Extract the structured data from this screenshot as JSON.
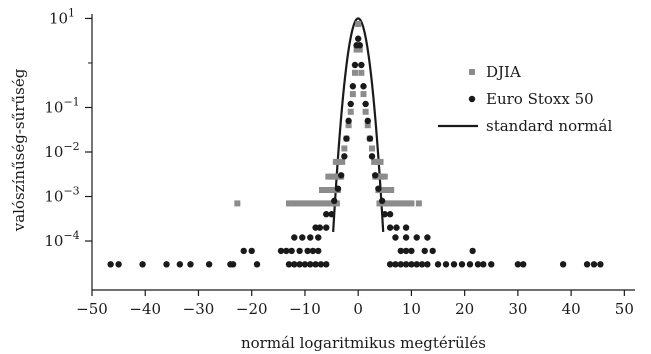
{
  "chart_data": {
    "type": "scatter",
    "xlabel": "normál logaritmikus megtérülés",
    "ylabel": "valószínűség-sűrűség",
    "xlim": [
      -50,
      52
    ],
    "ylim_log10": [
      -5.1,
      1.1
    ],
    "y_scale": "log",
    "x_ticks": [
      -50,
      -40,
      -30,
      -20,
      -10,
      0,
      10,
      20,
      30,
      40,
      50
    ],
    "y_ticks": [
      {
        "exp": 1,
        "base": "10",
        "sup": "1"
      },
      {
        "exp": -1,
        "base": "10",
        "sup": "−1"
      },
      {
        "exp": -2,
        "base": "10",
        "sup": "−2"
      },
      {
        "exp": -3,
        "base": "10",
        "sup": "−3"
      },
      {
        "exp": -4,
        "base": "10",
        "sup": "−4"
      }
    ],
    "minor_y_ticks": [
      0
    ],
    "legend_position": "right",
    "series": [
      {
        "name": "DJIA",
        "marker": "square",
        "color": "#8c8c8c",
        "points": [
          [
            -22.7,
            0.0007
          ],
          [
            -13.0,
            0.0007
          ],
          [
            -12.4,
            0.0007
          ],
          [
            -11.8,
            0.0007
          ],
          [
            -11.2,
            0.0007
          ],
          [
            -10.6,
            0.0007
          ],
          [
            -10.0,
            0.0007
          ],
          [
            -9.4,
            0.0007
          ],
          [
            -8.8,
            0.0007
          ],
          [
            -8.2,
            0.0007
          ],
          [
            -7.6,
            0.0007
          ],
          [
            -7.0,
            0.0007
          ],
          [
            -6.4,
            0.0007
          ],
          [
            -5.8,
            0.0007
          ],
          [
            -5.2,
            0.0007
          ],
          [
            -4.6,
            0.0007
          ],
          [
            -4.0,
            0.0007
          ],
          [
            4.0,
            0.0007
          ],
          [
            4.6,
            0.0007
          ],
          [
            5.2,
            0.0007
          ],
          [
            5.8,
            0.0007
          ],
          [
            6.4,
            0.0007
          ],
          [
            7.0,
            0.0007
          ],
          [
            7.6,
            0.0007
          ],
          [
            8.2,
            0.0007
          ],
          [
            8.8,
            0.0007
          ],
          [
            9.4,
            0.0007
          ],
          [
            10.0,
            0.0007
          ],
          [
            11.4,
            0.0007
          ],
          [
            -6.8,
            0.0014
          ],
          [
            -6.2,
            0.0014
          ],
          [
            -5.6,
            0.0014
          ],
          [
            -5.0,
            0.0014
          ],
          [
            -4.4,
            0.0014
          ],
          [
            -3.8,
            0.0014
          ],
          [
            3.8,
            0.0014
          ],
          [
            4.4,
            0.0014
          ],
          [
            5.0,
            0.0014
          ],
          [
            5.6,
            0.0014
          ],
          [
            6.2,
            0.0014
          ],
          [
            -5.6,
            0.0028
          ],
          [
            -5.0,
            0.0028
          ],
          [
            -4.4,
            0.0028
          ],
          [
            -3.8,
            0.0028
          ],
          [
            -3.2,
            0.0028
          ],
          [
            3.2,
            0.0028
          ],
          [
            3.8,
            0.0028
          ],
          [
            4.4,
            0.0028
          ],
          [
            5.0,
            0.0028
          ],
          [
            -4.2,
            0.006
          ],
          [
            -3.6,
            0.006
          ],
          [
            -3.0,
            0.006
          ],
          [
            3.0,
            0.006
          ],
          [
            3.6,
            0.006
          ],
          [
            4.2,
            0.006
          ],
          [
            -2.6,
            0.012
          ],
          [
            -2.2,
            0.02
          ],
          [
            -1.8,
            0.04
          ],
          [
            -1.4,
            0.08
          ],
          [
            -1.0,
            0.2
          ],
          [
            -0.6,
            0.6
          ],
          [
            -0.3,
            2.0
          ],
          [
            0.0,
            7.5
          ],
          [
            0.3,
            2.0
          ],
          [
            0.6,
            0.6
          ],
          [
            1.0,
            0.2
          ],
          [
            1.4,
            0.08
          ],
          [
            1.8,
            0.04
          ],
          [
            2.2,
            0.02
          ],
          [
            2.6,
            0.012
          ]
        ]
      },
      {
        "name": "Euro Stoxx 50",
        "marker": "circle",
        "color": "#1a1a1a",
        "points": [
          [
            -46.5,
            3e-05
          ],
          [
            -45.0,
            3e-05
          ],
          [
            -40.5,
            3e-05
          ],
          [
            -36.0,
            3e-05
          ],
          [
            -33.5,
            3e-05
          ],
          [
            -31.5,
            3e-05
          ],
          [
            -28.0,
            3e-05
          ],
          [
            -24.0,
            3e-05
          ],
          [
            -23.5,
            3e-05
          ],
          [
            -19.0,
            3e-05
          ],
          [
            -13.0,
            3e-05
          ],
          [
            -12.0,
            3e-05
          ],
          [
            -11.0,
            3e-05
          ],
          [
            -10.0,
            3e-05
          ],
          [
            -9.0,
            3e-05
          ],
          [
            -8.0,
            3e-05
          ],
          [
            -7.0,
            3e-05
          ],
          [
            -6.0,
            3e-05
          ],
          [
            6.0,
            3e-05
          ],
          [
            7.0,
            3e-05
          ],
          [
            8.0,
            3e-05
          ],
          [
            9.0,
            3e-05
          ],
          [
            10.0,
            3e-05
          ],
          [
            11.0,
            3e-05
          ],
          [
            12.0,
            3e-05
          ],
          [
            13.0,
            3e-05
          ],
          [
            15.0,
            3e-05
          ],
          [
            16.5,
            3e-05
          ],
          [
            18.0,
            3e-05
          ],
          [
            19.5,
            3e-05
          ],
          [
            21.0,
            3e-05
          ],
          [
            22.5,
            3e-05
          ],
          [
            23.5,
            3e-05
          ],
          [
            25.0,
            3e-05
          ],
          [
            30.0,
            3e-05
          ],
          [
            31.0,
            3e-05
          ],
          [
            38.5,
            3e-05
          ],
          [
            43.0,
            3e-05
          ],
          [
            44.3,
            3e-05
          ],
          [
            45.5,
            3e-05
          ],
          [
            -21.5,
            6e-05
          ],
          [
            -20.0,
            6e-05
          ],
          [
            -14.5,
            6e-05
          ],
          [
            -13.5,
            6e-05
          ],
          [
            -12.5,
            6e-05
          ],
          [
            -11.0,
            6e-05
          ],
          [
            -9.5,
            6e-05
          ],
          [
            -8.5,
            6e-05
          ],
          [
            -7.5,
            6e-05
          ],
          [
            8.0,
            6e-05
          ],
          [
            9.0,
            6e-05
          ],
          [
            10.0,
            6e-05
          ],
          [
            12.5,
            6e-05
          ],
          [
            14.0,
            6e-05
          ],
          [
            21.5,
            6e-05
          ],
          [
            -12.0,
            0.00012
          ],
          [
            -10.5,
            0.00012
          ],
          [
            -9.0,
            0.00012
          ],
          [
            -7.5,
            0.00012
          ],
          [
            7.0,
            0.00012
          ],
          [
            9.0,
            0.00012
          ],
          [
            11.0,
            0.00012
          ],
          [
            13.0,
            0.00012
          ],
          [
            -8.0,
            0.0002
          ],
          [
            -7.2,
            0.0002
          ],
          [
            -6.0,
            0.0002
          ],
          [
            6.0,
            0.0002
          ],
          [
            7.2,
            0.0002
          ],
          [
            9.0,
            0.0002
          ],
          [
            -6.0,
            0.0004
          ],
          [
            -5.0,
            0.0004
          ],
          [
            5.0,
            0.0004
          ],
          [
            6.0,
            0.0004
          ],
          [
            -4.5,
            0.0008
          ],
          [
            4.5,
            0.0008
          ],
          [
            -3.8,
            0.0015
          ],
          [
            3.8,
            0.0015
          ],
          [
            -3.2,
            0.003
          ],
          [
            3.2,
            0.003
          ],
          [
            -2.6,
            0.008
          ],
          [
            2.6,
            0.008
          ],
          [
            -2.2,
            0.02
          ],
          [
            2.2,
            0.02
          ],
          [
            -1.8,
            0.05
          ],
          [
            1.8,
            0.05
          ],
          [
            -1.4,
            0.12
          ],
          [
            1.4,
            0.12
          ],
          [
            -1.0,
            0.3
          ],
          [
            1.0,
            0.3
          ],
          [
            -0.6,
            0.9
          ],
          [
            0.6,
            0.9
          ],
          [
            -0.3,
            2.5
          ],
          [
            0.3,
            2.5
          ],
          [
            0.0,
            3.5
          ]
        ]
      },
      {
        "name": "standard normál",
        "marker": "line",
        "color": "#1a1a1a",
        "curve": "gaussian",
        "mean": 0,
        "peak": 10.0,
        "x_range": [
          -4.7,
          4.7
        ]
      }
    ]
  }
}
